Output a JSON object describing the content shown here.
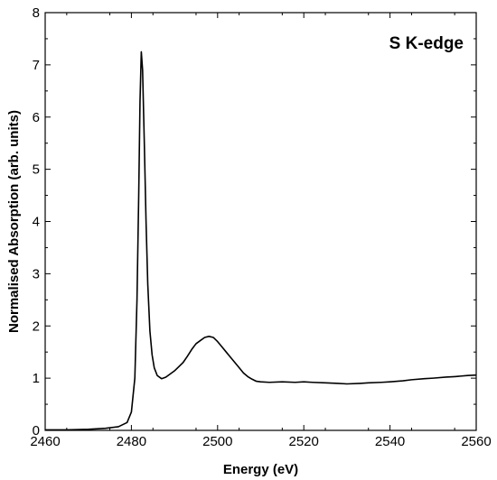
{
  "chart_data": {
    "type": "line",
    "xlabel": "Energy (eV)",
    "ylabel": "Normalised Absorption (arb. units)",
    "annotation": "S K-edge",
    "xlim": [
      2460,
      2560
    ],
    "ylim": [
      0,
      8
    ],
    "x_ticks": [
      "2460",
      "2480",
      "2500",
      "2520",
      "2540",
      "2560"
    ],
    "y_ticks": [
      "0",
      "1",
      "2",
      "3",
      "4",
      "5",
      "6",
      "7",
      "8"
    ],
    "grid": false,
    "legend": "none",
    "line_color": "#000000",
    "series": [
      {
        "x": [
          2460,
          2465,
          2470,
          2474,
          2477,
          2479,
          2480,
          2480.8,
          2481.3,
          2481.7,
          2482,
          2482.3,
          2482.6,
          2483,
          2483.4,
          2483.8,
          2484.3,
          2484.8,
          2485.3,
          2486,
          2487,
          2488,
          2489,
          2490,
          2491,
          2492,
          2493,
          2494,
          2495,
          2496,
          2497,
          2498,
          2499,
          2500,
          2501,
          2502,
          2503,
          2504,
          2505,
          2506,
          2507,
          2508,
          2509,
          2510,
          2512,
          2515,
          2518,
          2520,
          2522,
          2525,
          2528,
          2530,
          2533,
          2535,
          2538,
          2540,
          2543,
          2545,
          2548,
          2550,
          2553,
          2555,
          2558,
          2560
        ],
        "y": [
          0.01,
          0.01,
          0.02,
          0.04,
          0.07,
          0.15,
          0.35,
          1.0,
          2.5,
          4.5,
          6.3,
          7.25,
          6.9,
          5.5,
          4.0,
          2.8,
          1.9,
          1.45,
          1.2,
          1.05,
          0.99,
          1.02,
          1.08,
          1.14,
          1.22,
          1.3,
          1.42,
          1.55,
          1.66,
          1.72,
          1.78,
          1.8,
          1.78,
          1.7,
          1.6,
          1.5,
          1.4,
          1.3,
          1.2,
          1.1,
          1.03,
          0.98,
          0.94,
          0.93,
          0.92,
          0.93,
          0.92,
          0.93,
          0.92,
          0.91,
          0.9,
          0.89,
          0.9,
          0.91,
          0.92,
          0.93,
          0.95,
          0.97,
          0.99,
          1.0,
          1.02,
          1.03,
          1.05,
          1.06
        ]
      }
    ]
  }
}
